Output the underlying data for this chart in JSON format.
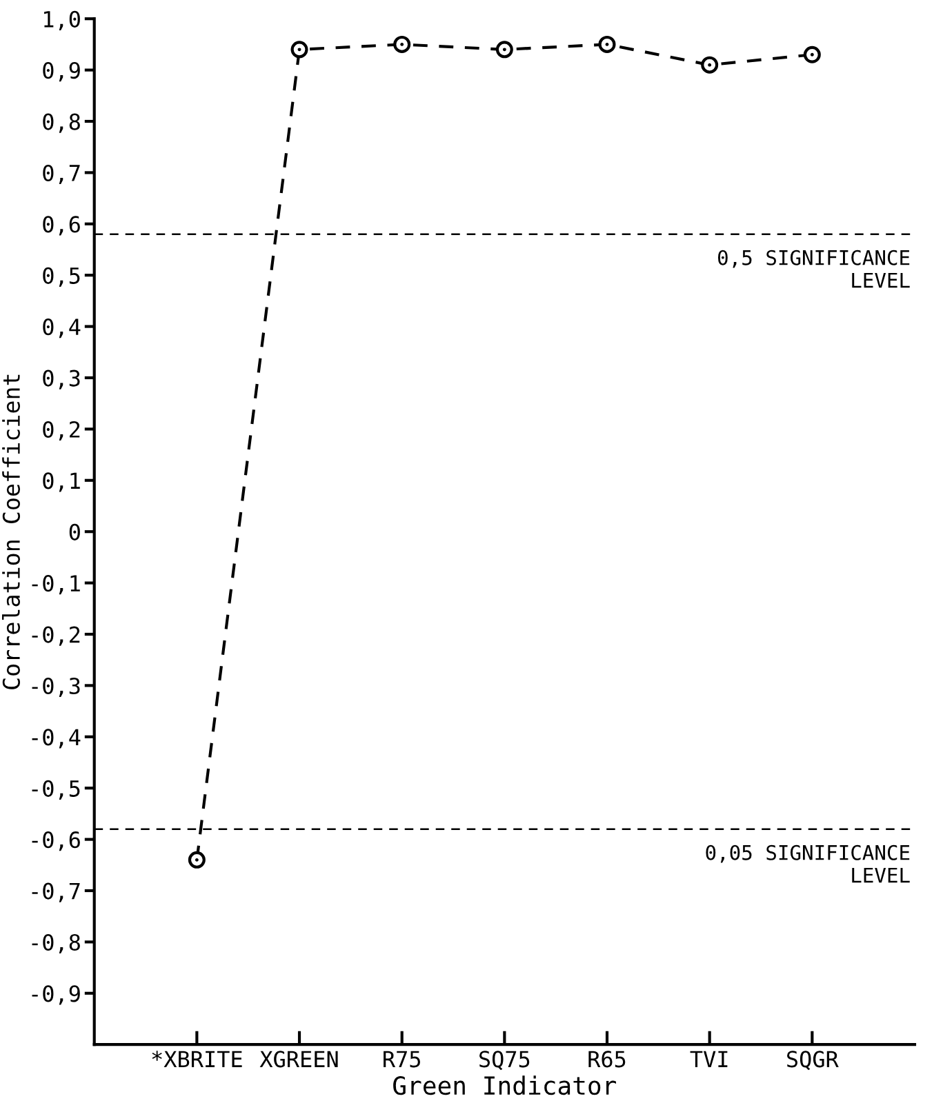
{
  "chart_data": {
    "type": "line",
    "xlabel": "Green Indicator",
    "ylabel": "Correlation Coefficient",
    "categories": [
      "*XBRITE",
      "XGREEN",
      "R75",
      "SQ75",
      "R65",
      "TVI",
      "SQGR"
    ],
    "series": [
      {
        "color": "#000000",
        "values": [
          -0.64,
          0.94,
          0.95,
          0.94,
          0.95,
          0.91,
          0.93
        ]
      }
    ],
    "marker": "circle",
    "line_style": "dashed",
    "grid": false,
    "ylim": [
      -1.0,
      1.0
    ],
    "yticks": [
      {
        "value": 1.0,
        "label": "1,0"
      },
      {
        "value": 0.9,
        "label": "0,9"
      },
      {
        "value": 0.8,
        "label": "0,8"
      },
      {
        "value": 0.7,
        "label": "0,7"
      },
      {
        "value": 0.6,
        "label": "0,6"
      },
      {
        "value": 0.5,
        "label": "0,5"
      },
      {
        "value": 0.4,
        "label": "0,4"
      },
      {
        "value": 0.3,
        "label": "0,3"
      },
      {
        "value": 0.2,
        "label": "0,2"
      },
      {
        "value": 0.1,
        "label": "0,1"
      },
      {
        "value": 0,
        "label": "0"
      },
      {
        "value": -0.1,
        "label": "-0,1"
      },
      {
        "value": -0.2,
        "label": "-0,2"
      },
      {
        "value": -0.3,
        "label": "-0,3"
      },
      {
        "value": -0.4,
        "label": "-0,4"
      },
      {
        "value": -0.5,
        "label": "-0,5"
      },
      {
        "value": -0.6,
        "label": "-0,6"
      },
      {
        "value": -0.7,
        "label": "-0,7"
      },
      {
        "value": -0.8,
        "label": "-0,8"
      },
      {
        "value": -0.9,
        "label": "-0,9"
      }
    ],
    "ref_lines": [
      {
        "axis": "y",
        "value": 0.58,
        "label": "0,5 SIGNIFICANCE\nLEVEL",
        "color": "#000000",
        "line_style": "dashed"
      },
      {
        "axis": "y",
        "value": -0.58,
        "label": "0,05 SIGNIFICANCE\nLEVEL",
        "color": "#000000",
        "line_style": "dashed"
      }
    ]
  }
}
